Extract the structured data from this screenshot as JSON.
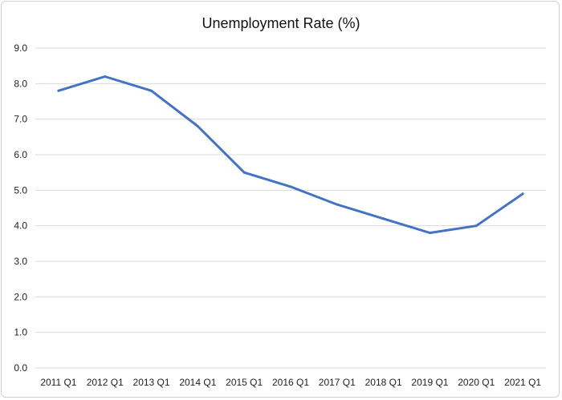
{
  "chart_data": {
    "type": "line",
    "title": "Unemployment Rate (%)",
    "xlabel": "",
    "ylabel": "",
    "categories": [
      "2011 Q1",
      "2012 Q1",
      "2013 Q1",
      "2014 Q1",
      "2015 Q1",
      "2016 Q1",
      "2017 Q1",
      "2018 Q1",
      "2019 Q1",
      "2020 Q1",
      "2021 Q1"
    ],
    "series": [
      {
        "values": [
          7.8,
          8.2,
          7.8,
          6.8,
          5.5,
          5.1,
          4.6,
          4.2,
          3.8,
          4.0,
          4.9
        ],
        "color": "#4472c4"
      }
    ],
    "ylim": [
      0,
      9
    ],
    "yticks": [
      "0.0",
      "1.0",
      "2.0",
      "3.0",
      "4.0",
      "5.0",
      "6.0",
      "7.0",
      "8.0",
      "9.0"
    ],
    "grid": true,
    "legend": "none"
  }
}
